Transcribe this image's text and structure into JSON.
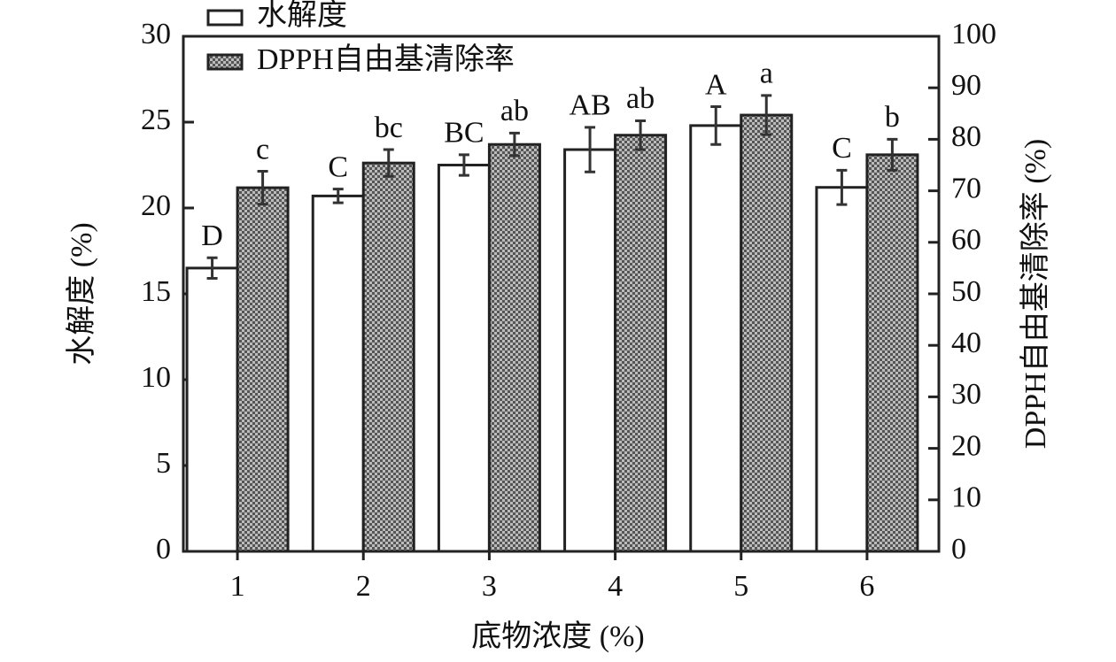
{
  "chart_data": {
    "type": "bar",
    "x_label": "底物浓度 (%)",
    "y_label": "水解度 (%)",
    "y2_label": "DPPH自由基清除率 (%)",
    "categories": [
      "1",
      "2",
      "3",
      "4",
      "5",
      "6"
    ],
    "series": [
      {
        "name": "水解度",
        "color": "#ffffff",
        "hatch": false,
        "values": [
          16.5,
          20.7,
          22.5,
          23.4,
          24.8,
          21.2
        ],
        "errors": [
          0.6,
          0.4,
          0.6,
          1.3,
          1.1,
          1.0
        ],
        "labels": [
          "D",
          "C",
          "BC",
          "AB",
          "A",
          "C"
        ]
      },
      {
        "name": "DPPH自由基清除率",
        "color": "#777777",
        "hatch": true,
        "axis": "y2",
        "values": [
          70.6,
          75.4,
          79.0,
          80.8,
          84.7,
          77.0
        ],
        "errors": [
          3.2,
          2.6,
          2.2,
          2.8,
          3.8,
          3.0
        ],
        "labels": [
          "c",
          "bc",
          "ab",
          "ab",
          "a",
          "b"
        ]
      }
    ],
    "ylim": [
      0,
      30
    ],
    "yticks": [
      0,
      5,
      10,
      15,
      20,
      25,
      30
    ],
    "y2lim": [
      0,
      100
    ],
    "y2ticks": [
      0,
      10,
      20,
      30,
      40,
      50,
      60,
      70,
      80,
      90,
      100
    ],
    "legend": "upper left",
    "grid": false
  }
}
